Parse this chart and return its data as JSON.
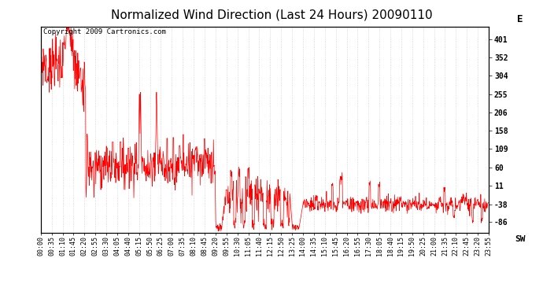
{
  "title": "Normalized Wind Direction (Last 24 Hours) 20090110",
  "copyright_text": "Copyright 2009 Cartronics.com",
  "line_color": "#ff0000",
  "background_color": "#ffffff",
  "grid_color": "#bbbbbb",
  "yticks": [
    401,
    352,
    304,
    255,
    206,
    158,
    109,
    60,
    11,
    -38,
    -86
  ],
  "ytick_labels": [
    "401",
    "352",
    "304",
    "255",
    "206",
    "158",
    "109",
    "60",
    "11",
    "-38",
    "-86"
  ],
  "ylim": [
    -115,
    435
  ],
  "ylabel_right_top": "E",
  "ylabel_right_bottom": "SW",
  "xtick_labels": [
    "00:00",
    "00:35",
    "01:10",
    "01:45",
    "02:20",
    "02:55",
    "03:30",
    "04:05",
    "04:40",
    "05:15",
    "05:50",
    "06:25",
    "07:00",
    "07:35",
    "08:10",
    "08:45",
    "09:20",
    "09:55",
    "10:30",
    "11:05",
    "11:40",
    "12:15",
    "12:50",
    "13:25",
    "14:00",
    "14:35",
    "15:10",
    "15:45",
    "16:20",
    "16:55",
    "17:30",
    "18:05",
    "18:40",
    "19:15",
    "19:50",
    "20:25",
    "21:00",
    "21:35",
    "22:10",
    "22:45",
    "23:20",
    "23:55"
  ],
  "title_fontsize": 11,
  "tick_fontsize": 6,
  "copyright_fontsize": 6.5
}
